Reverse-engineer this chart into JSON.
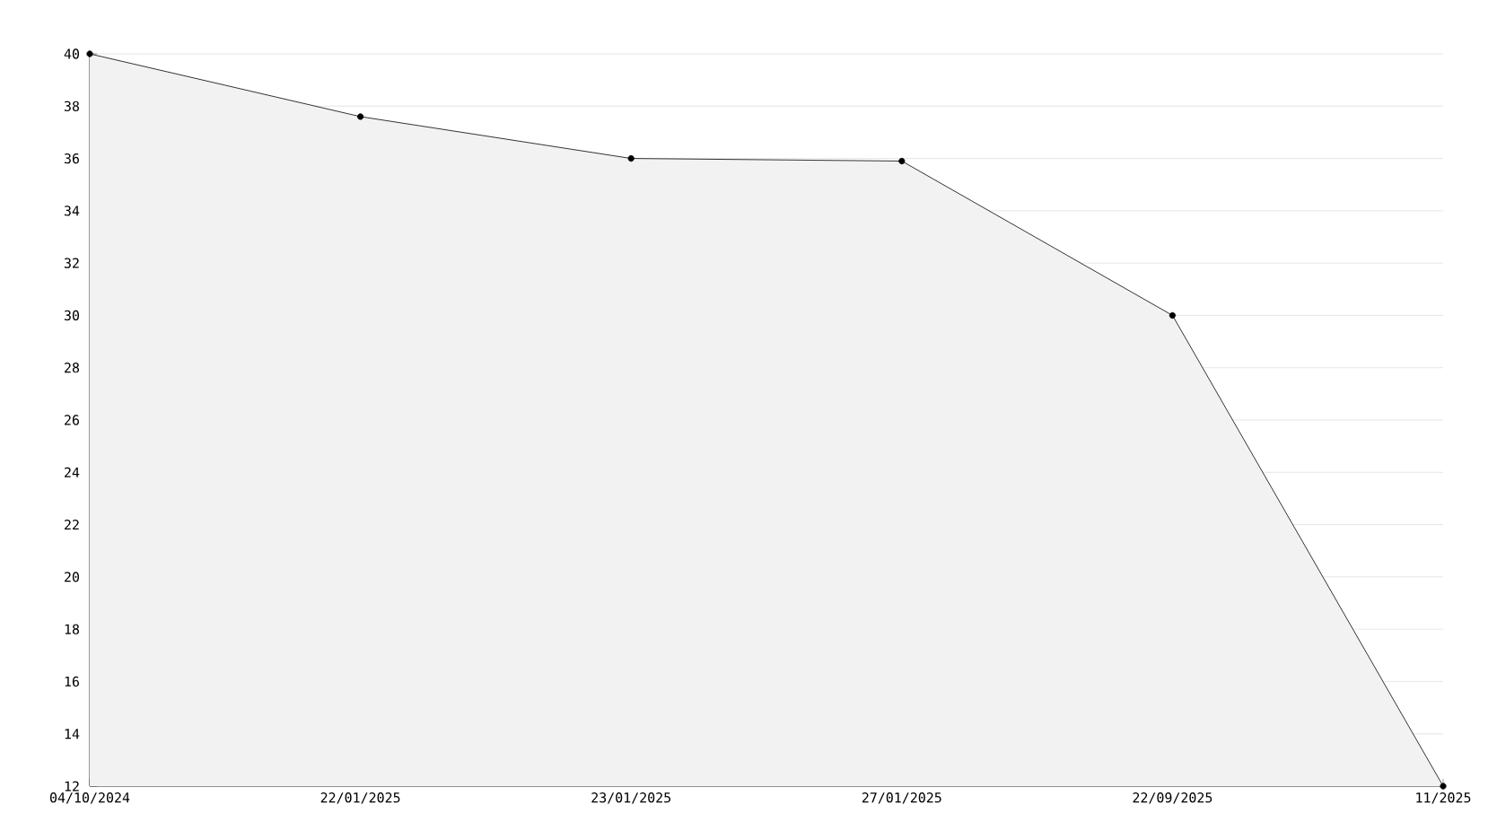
{
  "chart_data": {
    "type": "area",
    "categories": [
      "04/10/2024",
      "22/01/2025",
      "23/01/2025",
      "27/01/2025",
      "22/09/2025",
      "11/2025"
    ],
    "series": [
      {
        "color": "#000000",
        "values": [
          40,
          37.6,
          36.0,
          35.9,
          30,
          12
        ]
      }
    ],
    "ylim": [
      12,
      40
    ],
    "yticks": [
      12,
      14,
      16,
      18,
      20,
      22,
      24,
      26,
      28,
      30,
      32,
      34,
      36,
      38,
      40
    ],
    "grid": "y",
    "marker": "circle",
    "line_style": "solid"
  }
}
